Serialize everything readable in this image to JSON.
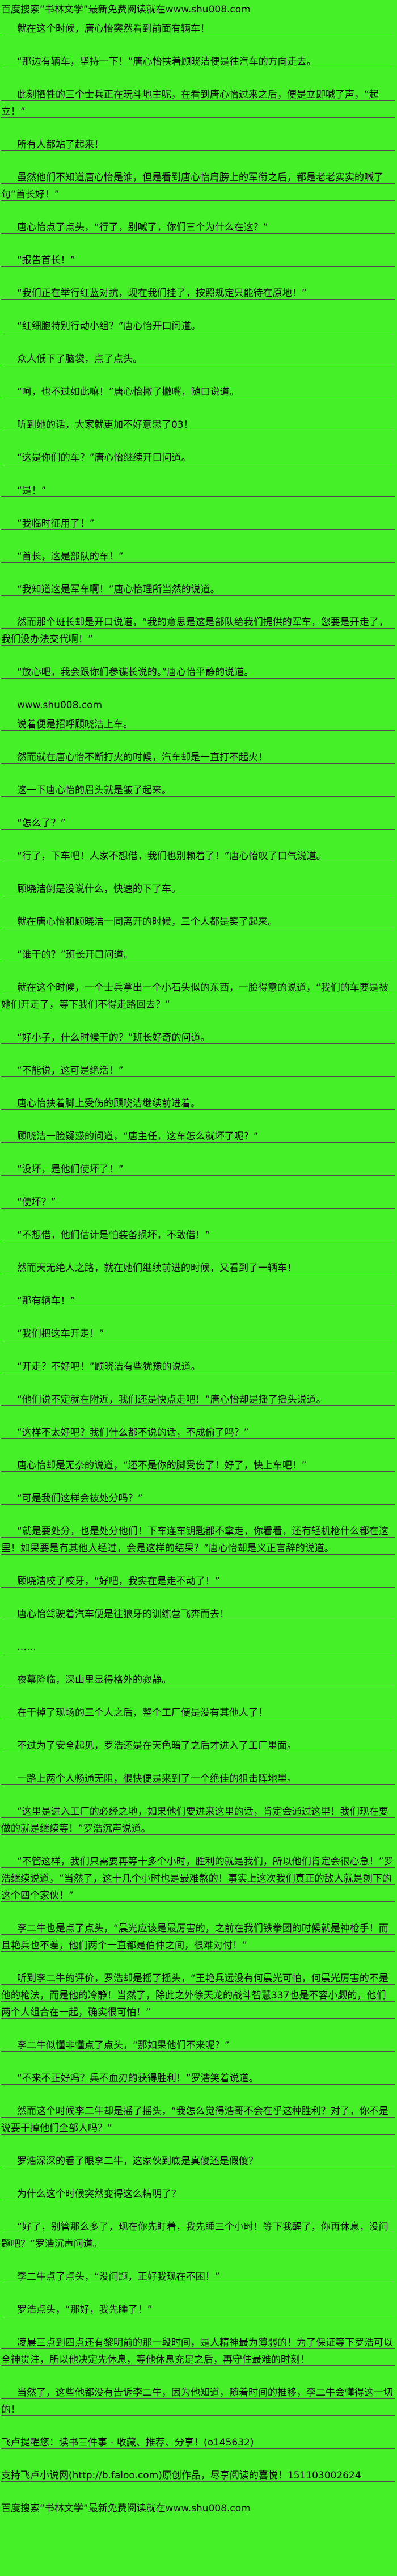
{
  "page": {
    "background_color": "#46f028",
    "rule_color": "#4f4f4f",
    "text_color": "#000000"
  },
  "content": {
    "paragraphs": [
      {
        "name": "promo-header",
        "cls": "no-gap",
        "underlined": false,
        "indent": false,
        "text": "百度搜索“书林文学”最新免费阅读就在www.shu008.com"
      },
      {
        "name": "novel-paragraph",
        "underlined": true,
        "indent": true,
        "text": "就在这个时候，唐心怡突然看到前面有辆车！"
      },
      {
        "name": "novel-paragraph",
        "underlined": true,
        "indent": true,
        "text": "“那边有辆车，坚持一下！”唐心怡扶着顾晓洁便是往汽车的方向走去。"
      },
      {
        "name": "novel-paragraph",
        "underlined": true,
        "indent": true,
        "text": "此刻牺牲的三个士兵正在玩斗地主呢，在看到唐心怡过来之后，便是立即喊了声，“起立！”"
      },
      {
        "name": "novel-paragraph",
        "underlined": true,
        "indent": true,
        "text": "所有人都站了起来！"
      },
      {
        "name": "novel-paragraph",
        "underlined": true,
        "indent": true,
        "text": "虽然他们不知道唐心怡是谁，但是看到唐心怡肩膀上的军衔之后，都是老老实实的喊了句“首长好！”"
      },
      {
        "name": "novel-paragraph",
        "underlined": true,
        "indent": true,
        "text": "唐心怡点了点头，“行了，别喊了，你们三个为什么在这？”"
      },
      {
        "name": "novel-paragraph",
        "underlined": true,
        "indent": true,
        "text": "“报告首长！”"
      },
      {
        "name": "novel-paragraph",
        "underlined": true,
        "indent": true,
        "text": "“我们正在举行红蓝对抗，现在我们挂了，按照规定只能待在原地！”"
      },
      {
        "name": "novel-paragraph",
        "underlined": true,
        "indent": true,
        "text": "“红细胞特别行动小组？”唐心怡开口问道。"
      },
      {
        "name": "novel-paragraph",
        "underlined": true,
        "indent": true,
        "text": "众人低下了脑袋，点了点头。"
      },
      {
        "name": "novel-paragraph",
        "underlined": true,
        "indent": true,
        "text": "“呵，也不过如此嘛！”唐心怡撇了撇嘴，随口说道。"
      },
      {
        "name": "novel-paragraph",
        "underlined": true,
        "indent": true,
        "text": "听到她的话，大家就更加不好意思了03！"
      },
      {
        "name": "novel-paragraph",
        "underlined": true,
        "indent": true,
        "text": "“这是你们的车？”唐心怡继续开口问道。"
      },
      {
        "name": "novel-paragraph",
        "underlined": true,
        "indent": true,
        "text": "“是！”"
      },
      {
        "name": "novel-paragraph",
        "underlined": true,
        "indent": true,
        "text": "“我临时征用了！”"
      },
      {
        "name": "novel-paragraph",
        "underlined": true,
        "indent": true,
        "text": "“首长，这是部队的车！”"
      },
      {
        "name": "novel-paragraph",
        "underlined": true,
        "indent": true,
        "text": "“我知道这是军车啊！”唐心怡理所当然的说道。"
      },
      {
        "name": "novel-paragraph",
        "underlined": true,
        "indent": true,
        "text": "然而那个班长却是开口说道，“我的意思是这是部队给我们提供的军车，您要是开走了，我们没办法交代啊！”"
      },
      {
        "name": "novel-paragraph",
        "underlined": true,
        "indent": true,
        "text": "“放心吧，我会跟你们参谋长说的。”唐心怡平静的说道。"
      },
      {
        "name": "watermark-url",
        "cls": "no-gap",
        "underlined": false,
        "indent": true,
        "text": "www.shu008.com"
      },
      {
        "name": "novel-paragraph",
        "underlined": true,
        "indent": true,
        "text": "说着便是招呼顾晓洁上车。"
      },
      {
        "name": "novel-paragraph",
        "underlined": true,
        "indent": true,
        "text": "然而就在唐心怡不断打火的时候，汽车却是一直打不起火！"
      },
      {
        "name": "novel-paragraph",
        "underlined": true,
        "indent": true,
        "text": "这一下唐心怡的眉头就是皱了起来。"
      },
      {
        "name": "novel-paragraph",
        "underlined": true,
        "indent": true,
        "text": "“怎么了？”"
      },
      {
        "name": "novel-paragraph",
        "underlined": true,
        "indent": true,
        "text": "“行了，下车吧！人家不想借，我们也别赖着了！”唐心怡叹了口气说道。"
      },
      {
        "name": "novel-paragraph",
        "underlined": true,
        "indent": true,
        "text": "顾晓洁倒是没说什么，快速的下了车。"
      },
      {
        "name": "novel-paragraph",
        "underlined": true,
        "indent": true,
        "text": "就在唐心怡和顾晓洁一同离开的时候，三个人都是笑了起来。"
      },
      {
        "name": "novel-paragraph",
        "underlined": true,
        "indent": true,
        "text": "“谁干的？”班长开口问道。"
      },
      {
        "name": "novel-paragraph",
        "underlined": true,
        "indent": true,
        "text": "就在这个时候，一个士兵拿出一个小石头似的东西，一脸得意的说道，“我们的车要是被她们开走了，等下我们不得走路回去？”"
      },
      {
        "name": "novel-paragraph",
        "underlined": true,
        "indent": true,
        "text": "“好小子，什么时候干的？”班长好奇的问道。"
      },
      {
        "name": "novel-paragraph",
        "underlined": true,
        "indent": true,
        "text": "“不能说，这可是绝活！”"
      },
      {
        "name": "novel-paragraph",
        "underlined": true,
        "indent": true,
        "text": "唐心怡扶着脚上受伤的顾晓洁继续前进着。"
      },
      {
        "name": "novel-paragraph",
        "underlined": true,
        "indent": true,
        "text": "顾晓洁一脸疑惑的问道，“唐主任，这车怎么就坏了呢？”"
      },
      {
        "name": "novel-paragraph",
        "underlined": true,
        "indent": true,
        "text": "“没坏，是他们使坏了！”"
      },
      {
        "name": "novel-paragraph",
        "underlined": true,
        "indent": true,
        "text": "“使坏？”"
      },
      {
        "name": "novel-paragraph",
        "underlined": true,
        "indent": true,
        "text": "“不想借，他们估计是怕装备损坏，不敢借！”"
      },
      {
        "name": "novel-paragraph",
        "underlined": true,
        "indent": true,
        "text": "然而天无绝人之路，就在她们继续前进的时候，又看到了一辆车！"
      },
      {
        "name": "novel-paragraph",
        "underlined": true,
        "indent": true,
        "text": "“那有辆车！”"
      },
      {
        "name": "novel-paragraph",
        "underlined": true,
        "indent": true,
        "text": "“我们把这车开走！”"
      },
      {
        "name": "novel-paragraph",
        "underlined": true,
        "indent": true,
        "text": "“开走？不好吧！”顾晓洁有些犹豫的说道。"
      },
      {
        "name": "novel-paragraph",
        "underlined": true,
        "indent": true,
        "text": "“他们说不定就在附近，我们还是快点走吧！”唐心怡却是摇了摇头说道。"
      },
      {
        "name": "novel-paragraph",
        "underlined": true,
        "indent": true,
        "text": "“这样不太好吧？我们什么都不说的话，不成偷了吗？”"
      },
      {
        "name": "novel-paragraph",
        "underlined": true,
        "indent": true,
        "text": "唐心怡却是无奈的说道，“还不是你的脚受伤了！好了，快上车吧！”"
      },
      {
        "name": "novel-paragraph",
        "underlined": true,
        "indent": true,
        "text": "“可是我们这样会被处分吗？”"
      },
      {
        "name": "novel-paragraph",
        "underlined": true,
        "indent": true,
        "text": "“就是要处分，也是处分他们！下车连车钥匙都不拿走，你看看，还有轻机枪什么都在这里！如果要是有其他人经过，会是这样的结果？”唐心怡却是义正言辞的说道。"
      },
      {
        "name": "novel-paragraph",
        "underlined": true,
        "indent": true,
        "text": "顾晓洁咬了咬牙，“好吧，我实在是走不动了！”"
      },
      {
        "name": "novel-paragraph",
        "underlined": true,
        "indent": true,
        "text": "唐心怡驾驶着汽车便是往狼牙的训练营飞奔而去！"
      },
      {
        "name": "novel-paragraph",
        "underlined": true,
        "indent": true,
        "text": "……"
      },
      {
        "name": "novel-paragraph",
        "underlined": true,
        "indent": true,
        "text": "夜幕降临，深山里显得格外的寂静。"
      },
      {
        "name": "novel-paragraph",
        "underlined": true,
        "indent": true,
        "text": "在干掉了现场的三个人之后，整个工厂便是没有其他人了！"
      },
      {
        "name": "novel-paragraph",
        "underlined": true,
        "indent": true,
        "text": "不过为了安全起见，罗浩还是在天色暗了之后才进入了工厂里面。"
      },
      {
        "name": "novel-paragraph",
        "underlined": true,
        "indent": true,
        "text": "一路上两个人畅通无阻，很快便是来到了一个绝佳的狙击阵地里。"
      },
      {
        "name": "novel-paragraph",
        "underlined": true,
        "indent": true,
        "text": "“这里是进入工厂的必经之地，如果他们要进来这里的话，肯定会通过这里！我们现在要做的就是继续等！”罗浩沉声说道。"
      },
      {
        "name": "novel-paragraph",
        "underlined": true,
        "indent": true,
        "text": "“不管这样，我们只需要再等十多个小时，胜利的就是我们，所以他们肯定会很心急！”罗浩继续说道，“当然了，这十几个小时也是最难熬的！事实上这次我们真正的敌人就是剩下的这个四个家伙！”"
      },
      {
        "name": "novel-paragraph",
        "underlined": true,
        "indent": true,
        "text": "李二牛也是点了点头，“晨光应该是最厉害的，之前在我们铁拳团的时候就是神枪手！而且艳兵也不差，他们两个一直都是伯仲之间，很难对付！”"
      },
      {
        "name": "novel-paragraph",
        "underlined": true,
        "indent": true,
        "text": "听到李二牛的评价，罗浩却是摇了摇头，“王艳兵远没有何晨光可怕，何晨光厉害的不是他的枪法，而是他的冷静！当然了，除此之外徐天龙的战斗智慧337也是不容小觑的，他们两个人组合在一起，确实很可怕！”"
      },
      {
        "name": "novel-paragraph",
        "underlined": true,
        "indent": true,
        "text": "李二牛似懂非懂点了点头，“那如果他们不来呢？”"
      },
      {
        "name": "novel-paragraph",
        "underlined": true,
        "indent": true,
        "text": "“不来不正好吗？兵不血刃的获得胜利！”罗浩笑着说道。"
      },
      {
        "name": "novel-paragraph",
        "underlined": true,
        "indent": true,
        "text": "然而这个时候李二牛却是摇了摇头，“我怎么觉得浩哥不会在乎这种胜利？对了，你不是说要干掉他们全部人吗？”"
      },
      {
        "name": "novel-paragraph",
        "underlined": true,
        "indent": true,
        "text": "罗浩深深的看了眼李二牛，这家伙到底是真傻还是假傻？"
      },
      {
        "name": "novel-paragraph",
        "underlined": true,
        "indent": true,
        "text": "为什么这个时候突然变得这么精明了？"
      },
      {
        "name": "novel-paragraph",
        "underlined": true,
        "indent": true,
        "text": "“好了，别管那么多了，现在你先盯着，我先睡三个小时！等下我醒了，你再休息，没问题吧？”罗浩沉声问道。"
      },
      {
        "name": "novel-paragraph",
        "underlined": true,
        "indent": true,
        "text": "李二牛点了点头，“没问题，正好我现在不困！”"
      },
      {
        "name": "novel-paragraph",
        "underlined": true,
        "indent": true,
        "text": "罗浩点头，“那好，我先睡了！”"
      },
      {
        "name": "novel-paragraph",
        "underlined": true,
        "indent": true,
        "text": "凌晨三点到四点还有黎明前的那一段时间，是人精神最为薄弱的！为了保证等下罗浩可以全神贯注，所以他决定先休息，等他休息充足之后，再守住最难的时刻！"
      },
      {
        "name": "novel-paragraph",
        "underlined": true,
        "indent": true,
        "text": "当然了，这些他都没有告诉李二牛，因为他知道，随着时间的推移，李二牛会懂得这一切的！"
      },
      {
        "name": "faloo-reminder",
        "underlined": true,
        "indent": false,
        "text": "飞卢提醒您：读书三件事 - 收藏、推荐、分享！(o145632)"
      },
      {
        "name": "faloo-support-line",
        "underlined": true,
        "indent": false,
        "text": "支持飞卢小说网(http://b.faloo.com)原创作品，尽享阅读的喜悦！151103002624"
      },
      {
        "name": "promo-footer",
        "cls": "tail",
        "underlined": false,
        "indent": false,
        "text": "百度搜索“书林文学”最新免费阅读就在www.shu008.com"
      }
    ]
  }
}
